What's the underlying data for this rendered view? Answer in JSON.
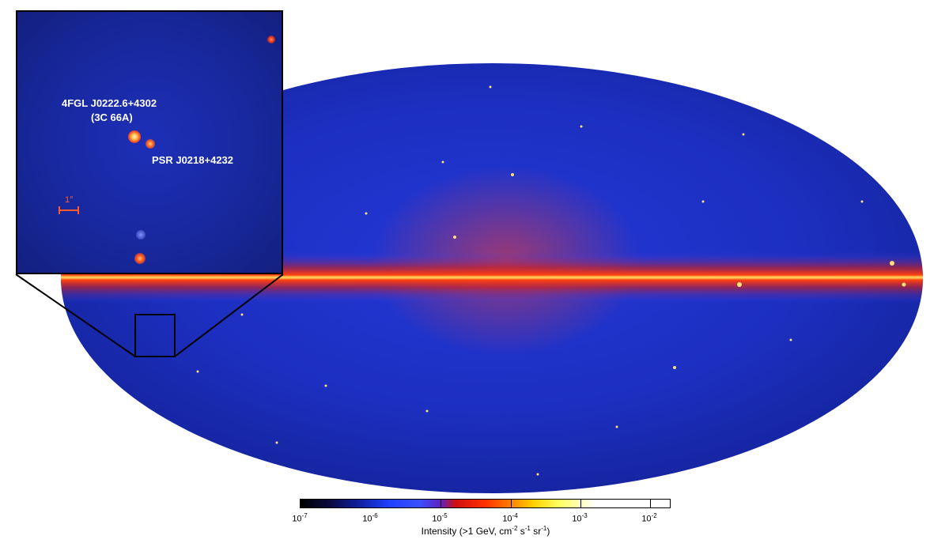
{
  "inset": {
    "source1_name": "4FGL J0222.6+4302",
    "source1_alias": "(3C 66A)",
    "source2_name": "PSR J0218+4232",
    "scalebar_label": "1°"
  },
  "colorbar": {
    "title_main": "Intensity (>1 GeV, cm",
    "title_exp1": "-2",
    "title_mid1": " s",
    "title_exp2": "-1",
    "title_mid2": " sr",
    "title_exp3": "-1",
    "title_end": ")",
    "ticks": [
      {
        "base": "10",
        "exp": "-7"
      },
      {
        "base": "10",
        "exp": "-6"
      },
      {
        "base": "10",
        "exp": "-5"
      },
      {
        "base": "10",
        "exp": "-4"
      },
      {
        "base": "10",
        "exp": "-3"
      },
      {
        "base": "10",
        "exp": "-2"
      }
    ]
  },
  "colors": {
    "background_sky": "#1a2db4",
    "galactic_plane": "#ff3a12",
    "plane_core": "#ffe25a",
    "scalebar": "#ff5a2a"
  }
}
